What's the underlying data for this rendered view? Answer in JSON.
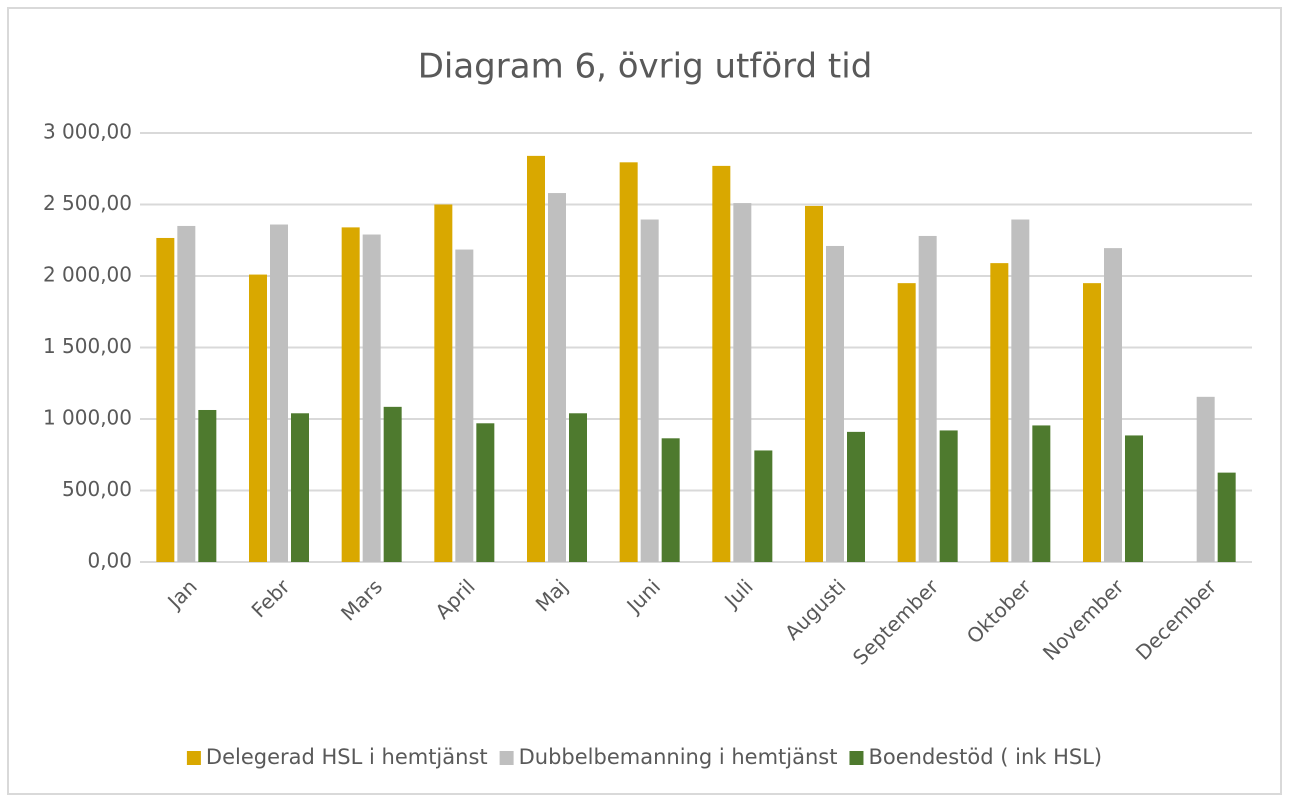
{
  "chart_data": {
    "type": "bar",
    "title": "Diagram 6, övrig utförd tid",
    "categories": [
      "Jan",
      "Febr",
      "Mars",
      "April",
      "Maj",
      "Juni",
      "Juli",
      "Augusti",
      "September",
      "Oktober",
      "November",
      "December"
    ],
    "series": [
      {
        "name": "Delegerad HSL i hemtjänst",
        "color": "#d9a800",
        "values": [
          2266,
          2010,
          2340,
          2500,
          2840,
          2795,
          2770,
          2490,
          1950,
          2090,
          1950,
          null
        ]
      },
      {
        "name": "Dubbelbemanning i hemtjänst",
        "color": "#bfbfbf",
        "values": [
          2350,
          2360,
          2290,
          2185,
          2580,
          2395,
          2510,
          2210,
          2280,
          2395,
          2195,
          1155
        ]
      },
      {
        "name": "Boendestöd ( ink HSL)",
        "color": "#4e7a2e",
        "values": [
          1063,
          1040,
          1085,
          970,
          1040,
          865,
          780,
          910,
          920,
          955,
          885,
          625
        ]
      }
    ],
    "ylim": [
      0,
      3000
    ],
    "yticks": [
      {
        "value": 0,
        "label": "0,00"
      },
      {
        "value": 500,
        "label": "500,00"
      },
      {
        "value": 1000,
        "label": "1 000,00"
      },
      {
        "value": 1500,
        "label": "1 500,00"
      },
      {
        "value": 2000,
        "label": "2 000,00"
      },
      {
        "value": 2500,
        "label": "2 500,00"
      },
      {
        "value": 3000,
        "label": "3 000,00"
      }
    ],
    "grid": true,
    "legend": "bottom"
  }
}
